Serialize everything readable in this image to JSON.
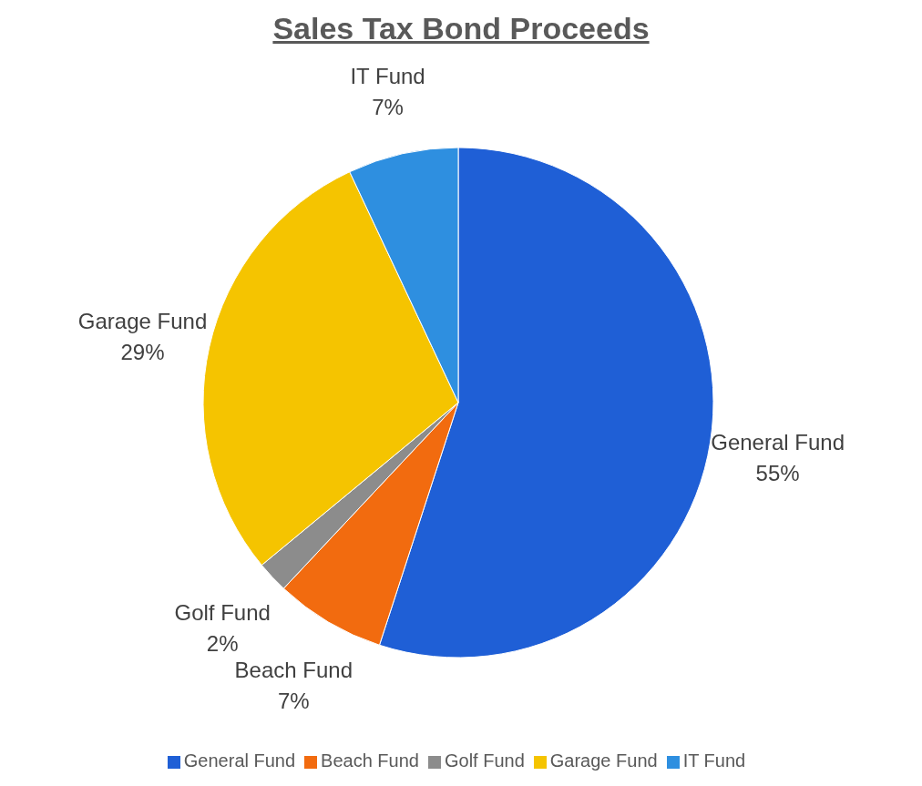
{
  "chart_data": {
    "type": "pie",
    "title": "Sales Tax Bond Proceeds",
    "categories": [
      "General Fund",
      "Beach Fund",
      "Golf Fund",
      "Garage Fund",
      "IT Fund"
    ],
    "values": [
      55,
      7,
      2,
      29,
      7
    ],
    "colors": [
      "#1f5fd6",
      "#f26b0f",
      "#8c8c8c",
      "#f5c400",
      "#2e8fe0"
    ],
    "value_labels": [
      "55%",
      "7%",
      "2%",
      "29%",
      "7%"
    ],
    "legend": "bottom"
  }
}
